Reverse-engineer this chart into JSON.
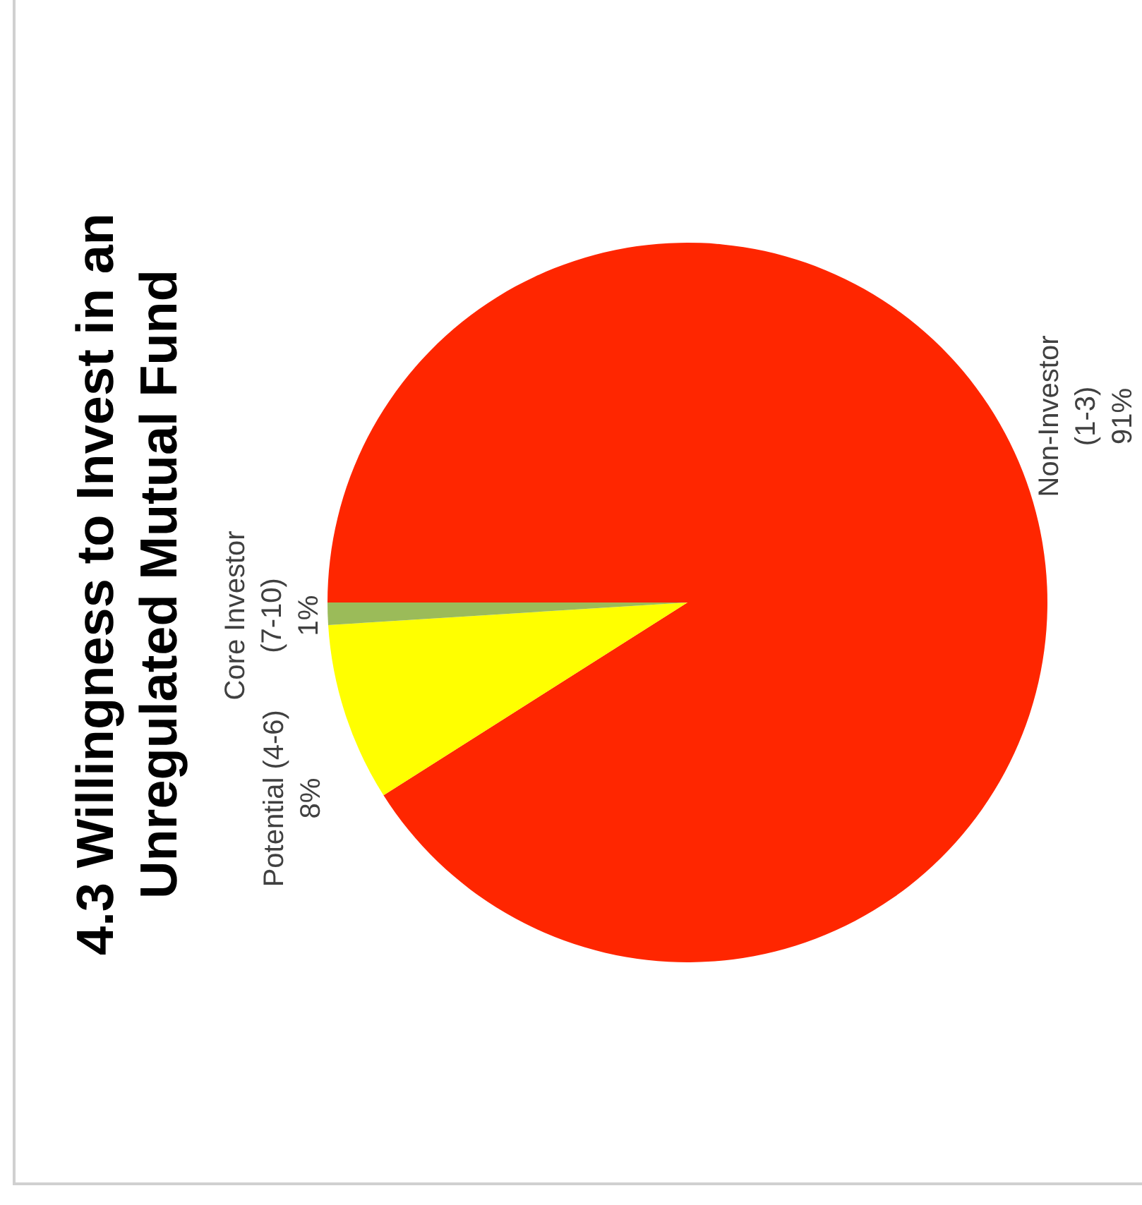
{
  "chart_data": {
    "type": "pie",
    "title": "4.3 Willingness to Invest in an Unregulated Mutual Fund",
    "categories": [
      "Non-Investor (1-3)",
      "Potential (4-6)",
      "Core Investor (7-10)"
    ],
    "values": [
      91,
      8,
      1
    ],
    "colors": [
      "#ff2600",
      "#ffff00",
      "#9bbb59"
    ],
    "value_labels": [
      "91%",
      "8%",
      "1%"
    ]
  }
}
